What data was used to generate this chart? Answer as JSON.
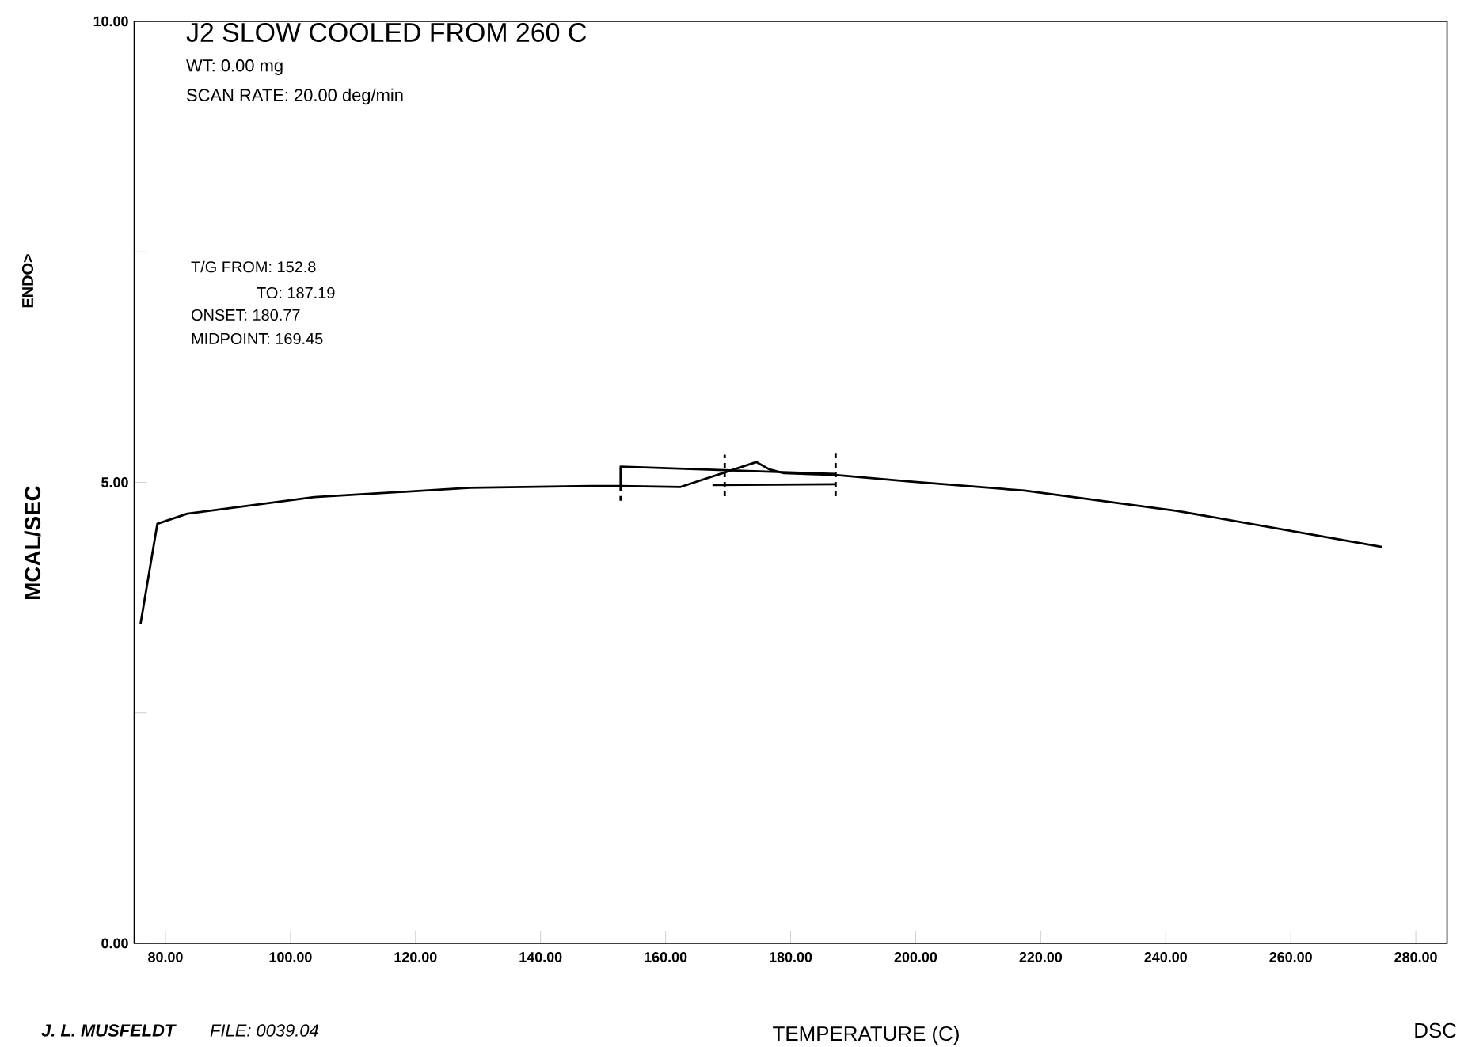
{
  "chart_data": {
    "type": "line",
    "title": "J2 SLOW COOLED FROM 260 C",
    "xlabel": "TEMPERATURE (C)",
    "ylabel": "MCAL/SEC",
    "annotations": [
      "WT:     0.00 mg",
      "SCAN RATE:    20.00 deg/min",
      "T/G FROM:  152.8",
      "TO:  187.19",
      "ONSET:  180.77",
      "MIDPOINT:  169.45",
      "ENDO>",
      "J. L. MUSFELDT",
      "FILE: 0039.04",
      "DSC"
    ],
    "xlim": [
      75,
      285
    ],
    "ylim": [
      0,
      10
    ],
    "xticks": [
      {
        "value": 80,
        "label": "80.00"
      },
      {
        "value": 100,
        "label": "100.00"
      },
      {
        "value": 120,
        "label": "120.00"
      },
      {
        "value": 140,
        "label": "140.00"
      },
      {
        "value": 160,
        "label": "160.00"
      },
      {
        "value": 180,
        "label": "180.00"
      },
      {
        "value": 200,
        "label": "200.00"
      },
      {
        "value": 220,
        "label": "220.00"
      },
      {
        "value": 240,
        "label": "240.00"
      },
      {
        "value": 260,
        "label": "260.00"
      },
      {
        "value": 280,
        "label": "280.00"
      }
    ],
    "yticks": [
      {
        "value": 0,
        "label": "0.00"
      },
      {
        "value": 2.5,
        "label": null
      },
      {
        "value": 5,
        "label": "5.00"
      },
      {
        "value": 7.5,
        "label": null
      },
      {
        "value": 10,
        "label": "10.00"
      }
    ],
    "marker": "none",
    "line_style": "solid",
    "series": [
      {
        "color": "#000000",
        "x": [
          76.0,
          78.7,
          83.5,
          103.8,
          128.7,
          148,
          152.7,
          162.4,
          169.6,
          174.5,
          176.6,
          178.9,
          187.1,
          199,
          217.4,
          241.8,
          274.6
        ],
        "values": [
          3.46,
          4.55,
          4.66,
          4.84,
          4.94,
          4.96,
          4.96,
          4.95,
          5.11,
          5.22,
          5.14,
          5.1,
          5.08,
          5.01,
          4.91,
          4.69,
          4.3
        ]
      },
      {
        "color": "#000000",
        "x": [
          152.8,
          152.8,
          187.19
        ],
        "values": [
          4.96,
          5.17,
          5.09
        ]
      },
      {
        "color": "#000000",
        "x": [
          167.5,
          187.19
        ],
        "values": [
          4.97,
          4.98
        ]
      },
      {
        "color": "#000000",
        "line_style": "dashed",
        "x": [
          152.8,
          152.8
        ],
        "values": [
          4.8,
          4.96
        ]
      },
      {
        "color": "#000000",
        "line_style": "dashed",
        "x": [
          169.45,
          169.45
        ],
        "values": [
          4.85,
          5.3
        ]
      },
      {
        "color": "#000000",
        "line_style": "dashed",
        "x": [
          187.19,
          187.19
        ],
        "values": [
          4.85,
          5.35
        ]
      }
    ]
  }
}
